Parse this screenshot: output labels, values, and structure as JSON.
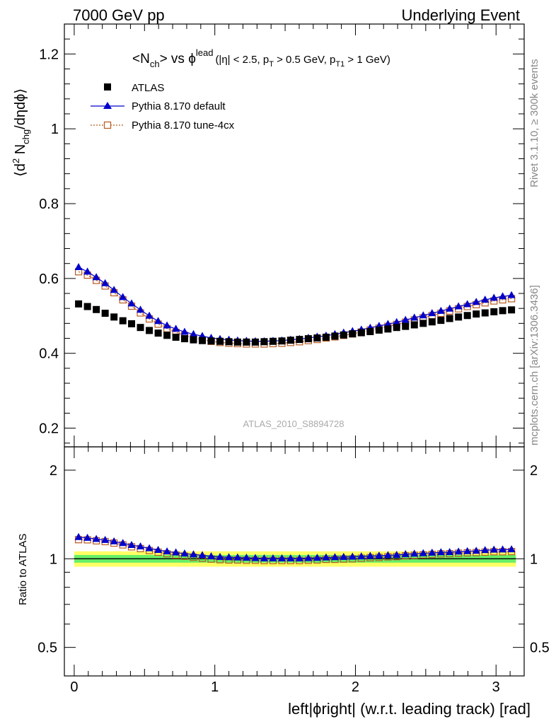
{
  "header": {
    "left": "7000 GeV pp",
    "right": "Underlying Event"
  },
  "side_labels": {
    "rivet": "Rivet 3.1.10, ≥ 300k events",
    "mcplots": "mcplots.cern.ch [arXiv:1306.3436]"
  },
  "watermark": "ATLAS_2010_S8894728",
  "plot_title": {
    "n_open": "<N",
    "n_sub": "ch",
    "n_close": "> vs ϕ",
    "phi_sup": "lead",
    "cuts_a": "(|η| < 2.5, p",
    "cuts_sub1": "T",
    "cuts_b": " > 0.5 GeV, p",
    "cuts_sub2": "T1",
    "cuts_c": " > 1 GeV)"
  },
  "y_label": {
    "a": "⟨d",
    "sup": "2",
    "b": " N",
    "sub": "chg",
    "c": "/dηdϕ⟩"
  },
  "ratio_label": "Ratio to ATLAS",
  "x_label": "left|ϕright| (w.r.t. leading track) [rad]",
  "colors": {
    "atlas": "#000000",
    "default": "#0000cc",
    "tune4cx": "#b85a1f",
    "band_inner": "#66ee66",
    "band_outer": "#ffff66"
  },
  "chart_data": {
    "type": "scatter",
    "x": [
      0.031,
      0.094,
      0.157,
      0.22,
      0.283,
      0.346,
      0.408,
      0.471,
      0.534,
      0.597,
      0.66,
      0.723,
      0.785,
      0.848,
      0.911,
      0.974,
      1.037,
      1.1,
      1.162,
      1.225,
      1.288,
      1.351,
      1.414,
      1.477,
      1.539,
      1.602,
      1.665,
      1.728,
      1.791,
      1.854,
      1.916,
      1.979,
      2.042,
      2.105,
      2.168,
      2.231,
      2.293,
      2.356,
      2.419,
      2.482,
      2.545,
      2.608,
      2.67,
      2.733,
      2.796,
      2.859,
      2.922,
      2.985,
      3.047,
      3.11
    ],
    "series": [
      {
        "name": "ATLAS",
        "marker": "filled-square",
        "values": [
          0.532,
          0.525,
          0.517,
          0.507,
          0.497,
          0.487,
          0.479,
          0.469,
          0.461,
          0.454,
          0.448,
          0.443,
          0.439,
          0.436,
          0.434,
          0.433,
          0.432,
          0.431,
          0.43,
          0.43,
          0.43,
          0.431,
          0.432,
          0.433,
          0.435,
          0.437,
          0.439,
          0.441,
          0.443,
          0.446,
          0.449,
          0.452,
          0.455,
          0.458,
          0.462,
          0.465,
          0.469,
          0.472,
          0.476,
          0.48,
          0.484,
          0.488,
          0.493,
          0.497,
          0.501,
          0.505,
          0.508,
          0.511,
          0.514,
          0.516
        ]
      },
      {
        "name": "Pythia 8.170 default",
        "marker": "filled-triangle",
        "values": [
          0.63,
          0.618,
          0.603,
          0.587,
          0.569,
          0.55,
          0.533,
          0.516,
          0.5,
          0.486,
          0.474,
          0.465,
          0.457,
          0.451,
          0.446,
          0.441,
          0.438,
          0.436,
          0.434,
          0.433,
          0.432,
          0.432,
          0.433,
          0.434,
          0.436,
          0.438,
          0.441,
          0.444,
          0.447,
          0.451,
          0.455,
          0.459,
          0.463,
          0.468,
          0.473,
          0.478,
          0.483,
          0.489,
          0.495,
          0.501,
          0.507,
          0.513,
          0.519,
          0.525,
          0.531,
          0.537,
          0.543,
          0.548,
          0.552,
          0.555
        ]
      },
      {
        "name": "Pythia 8.170 tune-4cx",
        "marker": "open-square",
        "values": [
          0.618,
          0.609,
          0.595,
          0.58,
          0.562,
          0.543,
          0.526,
          0.508,
          0.492,
          0.478,
          0.466,
          0.456,
          0.448,
          0.441,
          0.436,
          0.432,
          0.429,
          0.427,
          0.426,
          0.425,
          0.425,
          0.425,
          0.426,
          0.427,
          0.429,
          0.431,
          0.434,
          0.437,
          0.441,
          0.444,
          0.448,
          0.452,
          0.457,
          0.462,
          0.467,
          0.472,
          0.477,
          0.483,
          0.489,
          0.495,
          0.501,
          0.507,
          0.513,
          0.519,
          0.525,
          0.53,
          0.535,
          0.54,
          0.543,
          0.546
        ]
      }
    ],
    "main_ylim": [
      0.15,
      1.28
    ],
    "main_yticks": [
      0.2,
      0.4,
      0.6,
      0.8,
      1,
      1.2
    ],
    "main_yticklabels": [
      "0.2",
      "0.4",
      "0.6",
      "0.8",
      "1",
      "1.2"
    ],
    "ratio_ylim": [
      0.4,
      2.4
    ],
    "ratio_yticks": [
      0.5,
      1,
      2
    ],
    "ratio_yticklabels": [
      "0.5",
      "1",
      "2"
    ],
    "xlim": [
      -0.07,
      3.2
    ],
    "xticks": [
      0,
      1,
      2,
      3
    ],
    "xticklabels": [
      "0",
      "1",
      "2",
      "3"
    ],
    "ratio_band": {
      "inner": 0.03,
      "outer": 0.06
    },
    "legend_position": "top-left"
  }
}
